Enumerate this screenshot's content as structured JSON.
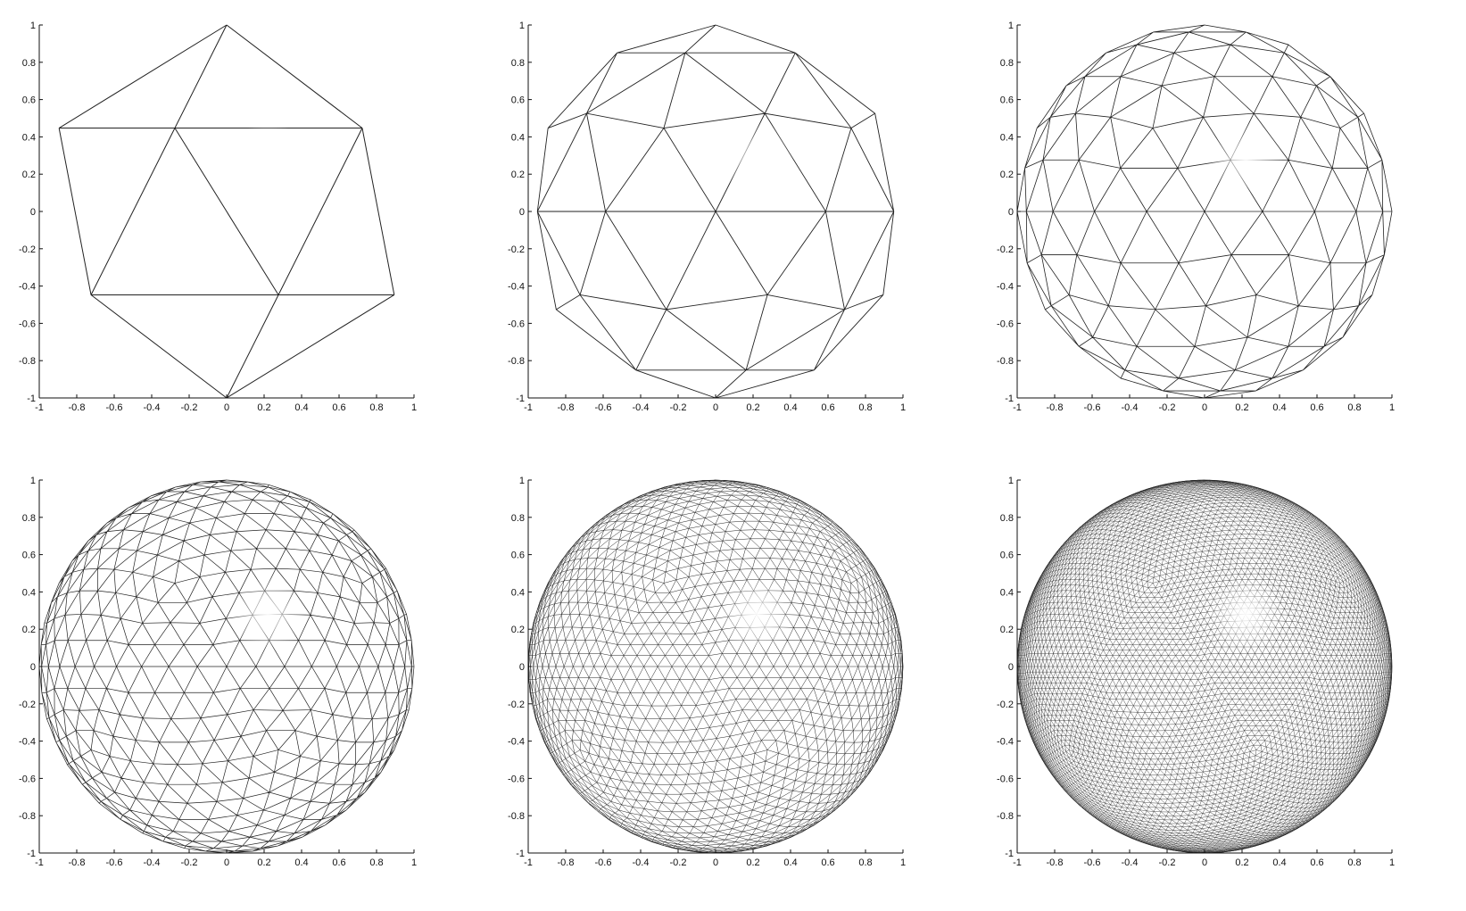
{
  "figure": {
    "panels": [
      {
        "id": "panel-1",
        "mesh_level": 1,
        "xlim": [
          -1,
          1
        ],
        "ylim": [
          -1,
          1
        ]
      },
      {
        "id": "panel-2",
        "mesh_level": 2,
        "xlim": [
          -1,
          1
        ],
        "ylim": [
          -1,
          1
        ]
      },
      {
        "id": "panel-3",
        "mesh_level": 3,
        "xlim": [
          -1,
          1
        ],
        "ylim": [
          -1,
          1
        ]
      },
      {
        "id": "panel-4",
        "mesh_level": 4,
        "xlim": [
          -1,
          1
        ],
        "ylim": [
          -1,
          1
        ]
      },
      {
        "id": "panel-5",
        "mesh_level": 5,
        "xlim": [
          -1,
          1
        ],
        "ylim": [
          -1,
          1
        ]
      },
      {
        "id": "panel-6",
        "mesh_level": 6,
        "xlim": [
          -1,
          1
        ],
        "ylim": [
          -1,
          1
        ]
      }
    ],
    "x_ticks": [
      "-1",
      "-0.8",
      "-0.6",
      "-0.4",
      "-0.2",
      "0",
      "0.2",
      "0.4",
      "0.6",
      "0.8",
      "1"
    ],
    "y_ticks": [
      "1",
      "0.8",
      "0.6",
      "0.4",
      "0.2",
      "0",
      "-0.2",
      "-0.4",
      "-0.6",
      "-0.8",
      "-1"
    ],
    "x_tick_values": [
      -1,
      -0.8,
      -0.6,
      -0.4,
      -0.2,
      0,
      0.2,
      0.4,
      0.6,
      0.8,
      1
    ],
    "y_tick_values": [
      1,
      0.8,
      0.6,
      0.4,
      0.2,
      0,
      -0.2,
      -0.4,
      -0.6,
      -0.8,
      -1
    ],
    "colors": {
      "line": "#222222",
      "axis": "#111111",
      "background": "#ffffff",
      "highlight": "#ffffff"
    }
  }
}
